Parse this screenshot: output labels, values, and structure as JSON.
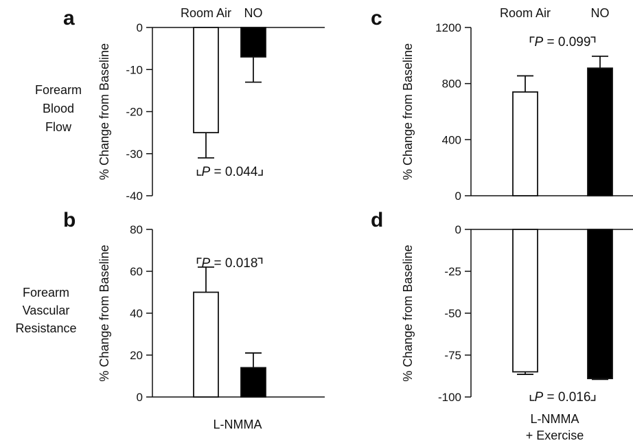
{
  "row_labels": {
    "top": [
      "Forearm",
      "Blood",
      "Flow"
    ],
    "bottom": [
      "Forearm",
      "Vascular",
      "Resistance"
    ]
  },
  "x_captions": {
    "left": [
      "L-NMMA"
    ],
    "right": [
      "L-NMMA",
      "+ Exercise"
    ]
  },
  "chart_data": [
    {
      "panel": "a",
      "type": "bar",
      "categories": [
        "Room Air",
        "NO"
      ],
      "values": [
        -25,
        -7
      ],
      "errors": [
        6,
        6
      ],
      "fill": [
        "#ffffff",
        "#000000"
      ],
      "ylabel": "% Change from Baseline",
      "ylim": [
        -40,
        0
      ],
      "yticks": [
        0,
        -10,
        -20,
        -30,
        -40
      ],
      "show_categories": true,
      "p_text": "P = 0.044",
      "p_bracket": "bottom"
    },
    {
      "panel": "b",
      "type": "bar",
      "categories": [
        "Room Air",
        "NO"
      ],
      "values": [
        50,
        14
      ],
      "errors": [
        12,
        7
      ],
      "fill": [
        "#ffffff",
        "#000000"
      ],
      "ylabel": "% Change from Baseline",
      "ylim": [
        0,
        80
      ],
      "yticks": [
        0,
        20,
        40,
        60,
        80
      ],
      "show_categories": false,
      "p_text": "P = 0.018",
      "p_bracket": "top"
    },
    {
      "panel": "c",
      "type": "bar",
      "categories": [
        "Room Air",
        "NO"
      ],
      "values": [
        740,
        910
      ],
      "errors": [
        115,
        85
      ],
      "fill": [
        "#ffffff",
        "#000000"
      ],
      "ylabel": "% Change from Baseline",
      "ylim": [
        0,
        1200
      ],
      "yticks": [
        0,
        400,
        800,
        1200
      ],
      "show_categories": true,
      "p_text": "P = 0.099",
      "p_bracket": "top"
    },
    {
      "panel": "d",
      "type": "bar",
      "categories": [
        "Room Air",
        "NO"
      ],
      "values": [
        -85,
        -89
      ],
      "errors": [
        1.5,
        0.5
      ],
      "fill": [
        "#ffffff",
        "#000000"
      ],
      "ylabel": "% Change from Baseline",
      "ylim": [
        -100,
        0
      ],
      "yticks": [
        0,
        -25,
        -50,
        -75,
        -100
      ],
      "show_categories": false,
      "p_text": "P = 0.016",
      "p_bracket": "bottom"
    }
  ]
}
